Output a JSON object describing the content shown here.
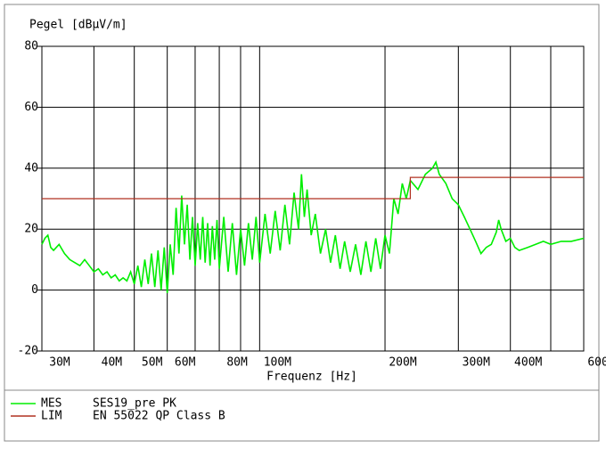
{
  "chart_data": {
    "type": "line",
    "title": "Pegel [dBµV/m]",
    "x_label": "Frequenz [Hz]",
    "log_x": true,
    "grid": true,
    "xlim": [
      30000000.0,
      600000000.0
    ],
    "ylim": [
      -20,
      80
    ],
    "yticks": [
      -20,
      0,
      20,
      40,
      60,
      80
    ],
    "xticks": [
      {
        "value": 30000000.0,
        "label": "30M"
      },
      {
        "value": 40000000.0,
        "label": "40M"
      },
      {
        "value": 50000000.0,
        "label": "50M"
      },
      {
        "value": 60000000.0,
        "label": "60M"
      },
      {
        "value": 80000000.0,
        "label": "80M"
      },
      {
        "value": 100000000.0,
        "label": "100M"
      },
      {
        "value": 200000000.0,
        "label": "200M"
      },
      {
        "value": 300000000.0,
        "label": "300M"
      },
      {
        "value": 400000000.0,
        "label": "400M"
      },
      {
        "value": 600000000.0,
        "label": "600M"
      }
    ],
    "x_minor_grid": [
      70000000.0,
      90000000.0,
      500000000.0
    ],
    "series": [
      {
        "name": "MES",
        "description": "SES19_pre PK",
        "color": "#00ee00",
        "x": [
          30000000.0,
          30500000.0,
          31000000.0,
          31500000.0,
          32000000.0,
          33000000.0,
          34000000.0,
          35000000.0,
          36000000.0,
          37000000.0,
          38000000.0,
          39000000.0,
          40000000.0,
          41000000.0,
          42000000.0,
          43000000.0,
          44000000.0,
          45000000.0,
          46000000.0,
          47000000.0,
          48000000.0,
          49000000.0,
          50000000.0,
          51000000.0,
          52000000.0,
          53000000.0,
          54000000.0,
          55000000.0,
          56000000.0,
          57000000.0,
          58000000.0,
          59000000.0,
          60000000.0,
          61000000.0,
          62000000.0,
          63000000.0,
          64000000.0,
          65000000.0,
          66000000.0,
          67000000.0,
          68000000.0,
          69000000.0,
          70000000.0,
          71000000.0,
          72000000.0,
          73000000.0,
          74000000.0,
          75000000.0,
          76000000.0,
          77000000.0,
          78000000.0,
          79000000.0,
          80000000.0,
          82000000.0,
          84000000.0,
          86000000.0,
          88000000.0,
          90000000.0,
          92000000.0,
          94000000.0,
          96000000.0,
          98000000.0,
          100000000.0,
          103000000.0,
          106000000.0,
          109000000.0,
          112000000.0,
          115000000.0,
          118000000.0,
          121000000.0,
          124000000.0,
          126000000.0,
          128000000.0,
          130000000.0,
          133000000.0,
          136000000.0,
          140000000.0,
          144000000.0,
          148000000.0,
          152000000.0,
          156000000.0,
          160000000.0,
          165000000.0,
          170000000.0,
          175000000.0,
          180000000.0,
          185000000.0,
          190000000.0,
          195000000.0,
          200000000.0,
          205000000.0,
          210000000.0,
          215000000.0,
          220000000.0,
          225000000.0,
          230000000.0,
          240000000.0,
          250000000.0,
          260000000.0,
          265000000.0,
          270000000.0,
          280000000.0,
          290000000.0,
          300000000.0,
          310000000.0,
          320000000.0,
          330000000.0,
          340000000.0,
          350000000.0,
          360000000.0,
          370000000.0,
          375000000.0,
          380000000.0,
          390000000.0,
          400000000.0,
          410000000.0,
          420000000.0,
          440000000.0,
          460000000.0,
          480000000.0,
          500000000.0,
          530000000.0,
          560000000.0,
          600000000.0
        ],
        "values": [
          15,
          17,
          18,
          14,
          13,
          15,
          12,
          10,
          9,
          8,
          10,
          8,
          6,
          7,
          5,
          6,
          4,
          5,
          3,
          4,
          3,
          6,
          2,
          8,
          1,
          10,
          2,
          12,
          1,
          13,
          0,
          14,
          -1,
          15,
          5,
          27,
          12,
          31,
          15,
          28,
          10,
          24,
          8,
          22,
          10,
          24,
          9,
          22,
          8,
          21,
          10,
          23,
          7,
          24,
          6,
          22,
          5,
          20,
          8,
          22,
          10,
          24,
          9,
          25,
          12,
          26,
          13,
          28,
          15,
          32,
          20,
          38,
          24,
          33,
          18,
          25,
          12,
          20,
          9,
          18,
          7,
          16,
          6,
          15,
          5,
          16,
          6,
          17,
          7,
          18,
          12,
          30,
          25,
          35,
          30,
          36,
          33,
          38,
          40,
          42,
          38,
          35,
          30,
          28,
          24,
          20,
          16,
          12,
          14,
          15,
          19,
          23,
          20,
          16,
          17,
          14,
          13,
          14,
          15,
          16,
          15,
          16,
          16,
          17
        ]
      },
      {
        "name": "LIM",
        "description": "EN 55022 QP Class B",
        "color": "#b03020",
        "x": [
          30000000.0,
          230000000.0,
          230000000.0,
          600000000.0
        ],
        "values": [
          30,
          30,
          37,
          37
        ]
      }
    ]
  }
}
